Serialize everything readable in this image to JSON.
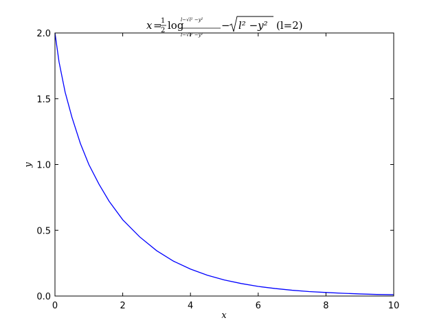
{
  "chart_data": {
    "type": "line",
    "title": {
      "lhs": "x",
      "eq": "=",
      "half_num": "1",
      "half_den": "2",
      "log": "log",
      "num": "l−√l² −y²",
      "den": "l−√l² −y²",
      "minus": "−",
      "sqrt_term": "l² −y²",
      "param": "(l=2)"
    },
    "xlabel": "x",
    "ylabel": "y",
    "xlim": [
      0,
      10
    ],
    "ylim": [
      0.0,
      2.0
    ],
    "x_ticks": [
      "0",
      "2",
      "4",
      "6",
      "8",
      "10"
    ],
    "y_ticks": [
      "0.0",
      "0.5",
      "1.0",
      "1.5",
      "2.0"
    ],
    "x_tick_values": [
      0,
      2,
      4,
      6,
      8,
      10
    ],
    "y_tick_values": [
      0.0,
      0.5,
      1.0,
      1.5,
      2.0
    ],
    "grid": false,
    "line_color": "#0000ff",
    "series": [
      {
        "x": [
          0.0,
          0.12,
          0.3,
          0.5,
          0.75,
          1.0,
          1.3,
          1.6,
          2.0,
          2.5,
          3.0,
          3.5,
          4.0,
          4.5,
          5.0,
          5.5,
          6.0,
          6.5,
          7.0,
          7.5,
          8.0,
          8.5,
          9.0,
          9.5,
          10.0
        ],
        "values": [
          2.0,
          1.78,
          1.55,
          1.36,
          1.16,
          1.0,
          0.85,
          0.72,
          0.58,
          0.45,
          0.345,
          0.265,
          0.205,
          0.158,
          0.122,
          0.095,
          0.073,
          0.057,
          0.044,
          0.034,
          0.027,
          0.021,
          0.016,
          0.012,
          0.01
        ]
      }
    ]
  }
}
